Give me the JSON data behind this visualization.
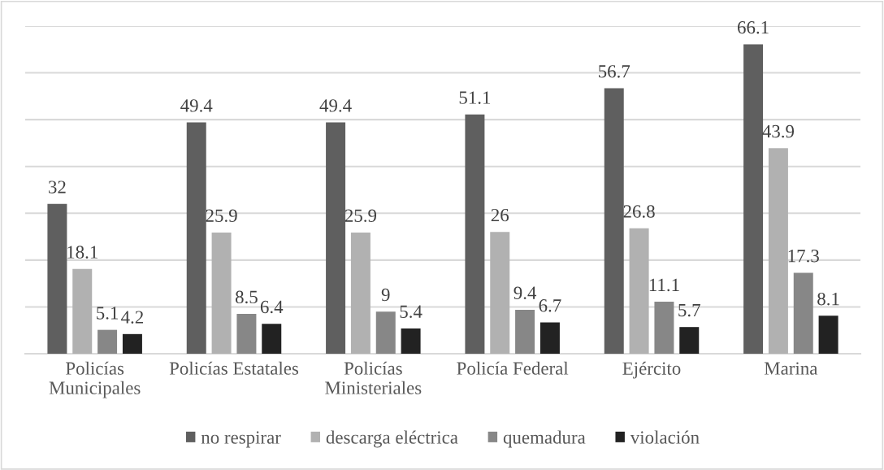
{
  "chart_data": {
    "type": "bar",
    "categories": [
      "Policías Municipales",
      "Policías Estatales",
      "Policías Ministeriales",
      "Policía Federal",
      "Ejército",
      "Marina"
    ],
    "series": [
      {
        "name": "no respirar",
        "color": "#5f5f5f",
        "values": [
          32,
          49.4,
          49.4,
          51.1,
          56.7,
          66.1
        ]
      },
      {
        "name": "descarga eléctrica",
        "color": "#b1b1b1",
        "values": [
          18.1,
          25.9,
          25.9,
          26,
          26.8,
          43.9
        ]
      },
      {
        "name": "quemadura",
        "color": "#878787",
        "values": [
          5.1,
          8.5,
          9,
          9.4,
          11.1,
          17.3
        ]
      },
      {
        "name": "violación",
        "color": "#222222",
        "values": [
          4.2,
          6.4,
          5.4,
          6.7,
          5.7,
          8.1
        ]
      }
    ],
    "ylim": [
      0,
      70
    ],
    "yticks": [
      {
        "value": 0,
        "label": null
      },
      {
        "value": 10,
        "label": null
      },
      {
        "value": 20,
        "label": null
      },
      {
        "value": 30,
        "label": null
      },
      {
        "value": 40,
        "label": null
      },
      {
        "value": 50,
        "label": null
      },
      {
        "value": 60,
        "label": null
      },
      {
        "value": 70,
        "label": null
      }
    ],
    "tick_labels": "x",
    "grid": "y",
    "legend": "bottom",
    "data_labels": true
  }
}
